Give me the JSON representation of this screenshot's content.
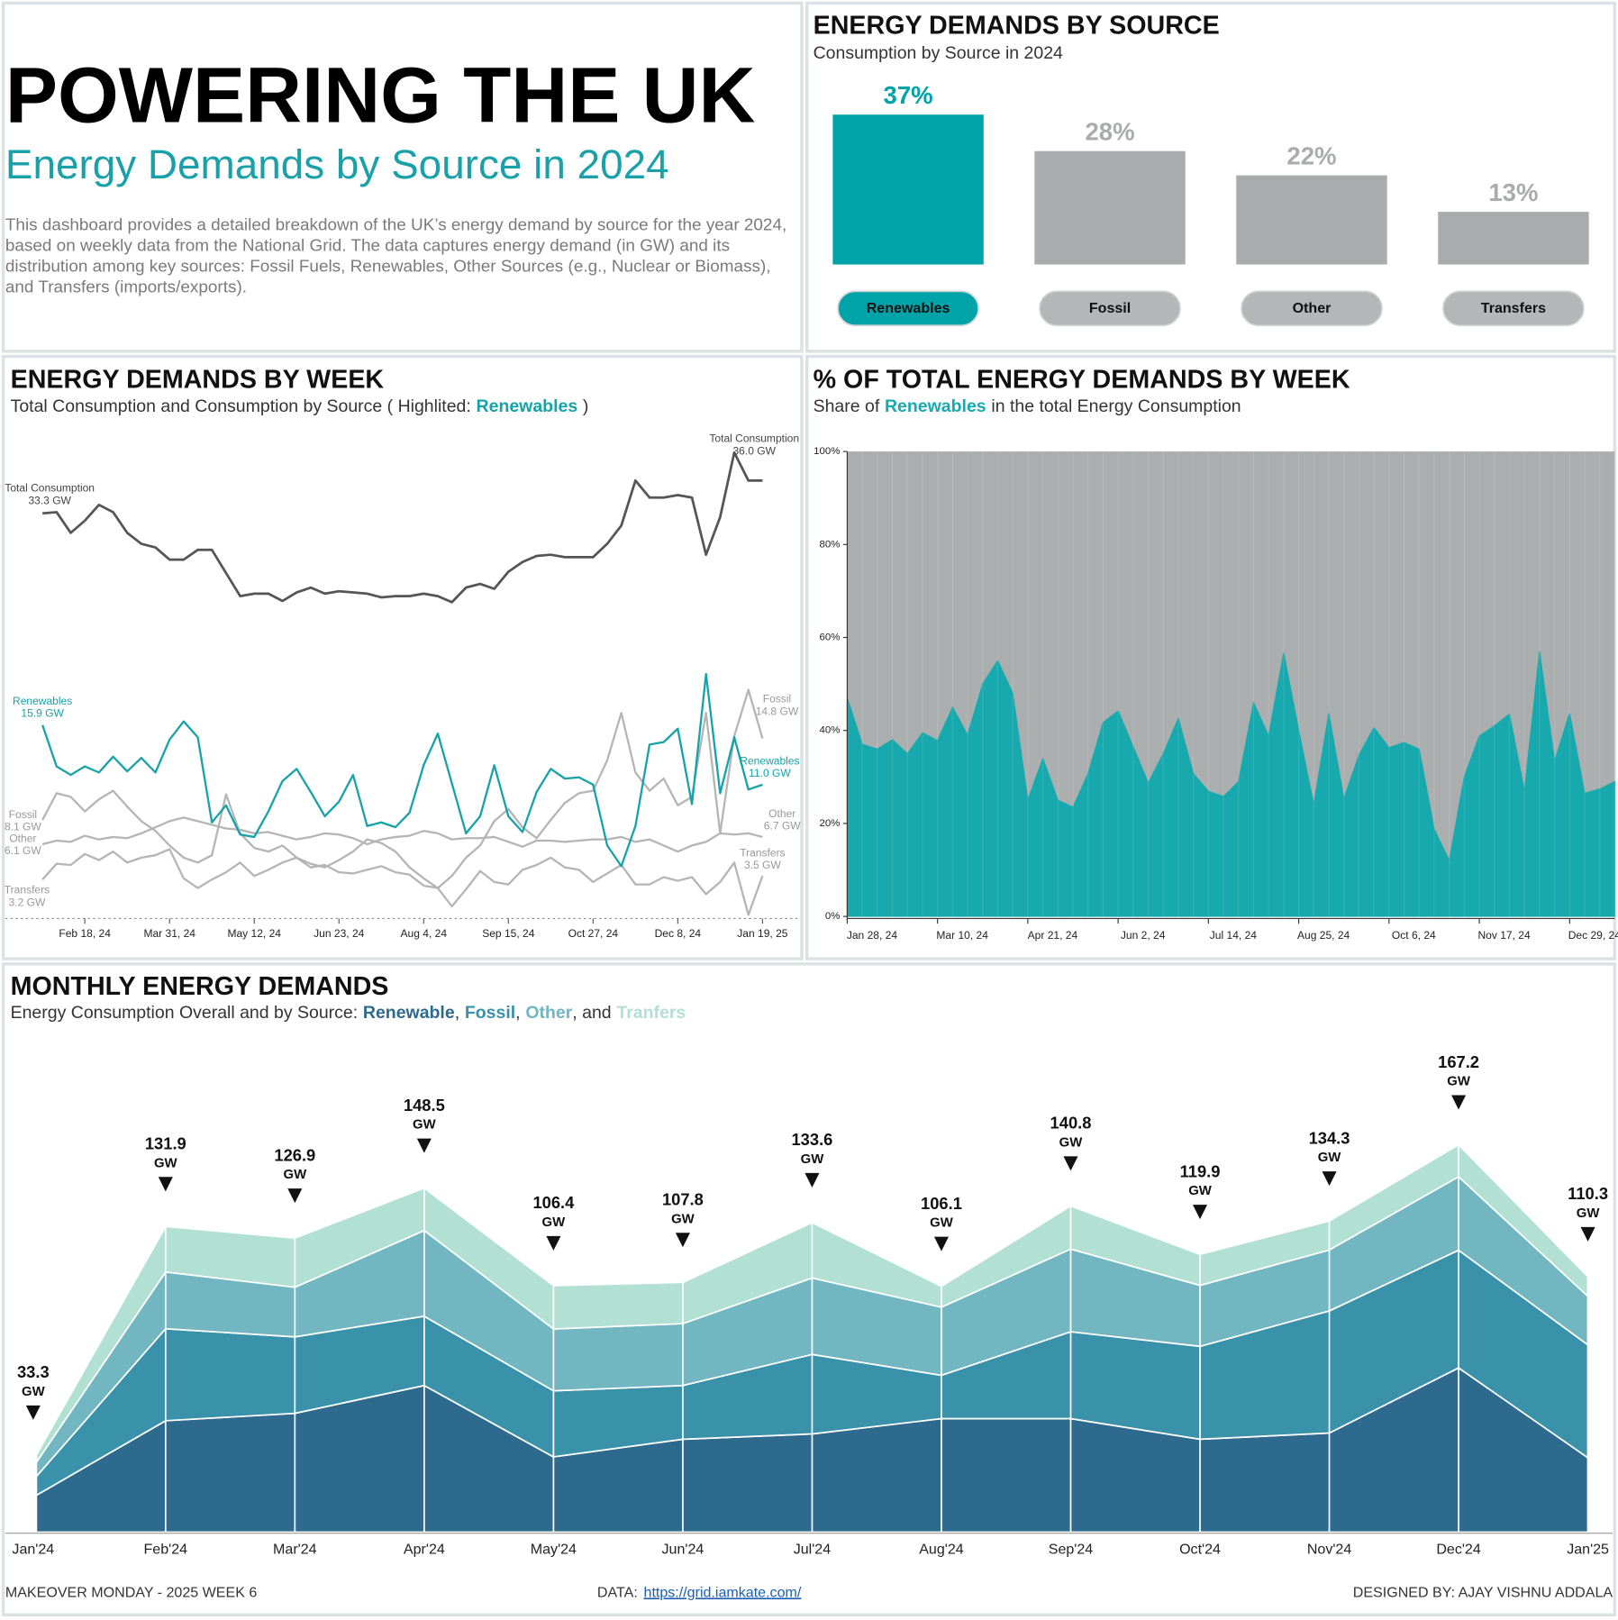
{
  "header": {
    "title": "POWERING THE UK",
    "subtitle": "Energy Demands by Source in 2024",
    "description": "This dashboard provides a detailed breakdown of the UK’s energy demand by source for the year 2024, based on weekly data from the National Grid. The data captures energy demand (in GW) and its distribution among key sources: Fossil Fuels, Renewables, Other Sources (e.g., Nuclear or Biomass), and Transfers (imports/exports)."
  },
  "footer": {
    "left": "MAKEOVER MONDAY - 2025 WEEK 6",
    "data_label": "DATA:",
    "data_url": "https://grid.iamkate.com/",
    "right": "DESIGNED BY: AJAY VISHNU ADDALA"
  },
  "chart_data": [
    {
      "type": "bar",
      "title": "ENERGY DEMANDS BY SOURCE",
      "subtitle": "Consumption by Source in 2024",
      "categories": [
        "Renewables",
        "Fossil",
        "Other",
        "Transfers"
      ],
      "values": [
        37,
        28,
        22,
        13
      ],
      "value_labels": [
        "37%",
        "28%",
        "22%",
        "13%"
      ],
      "colors": [
        "#00a3a8",
        "#a9abac",
        "#a9abac",
        "#a9abac"
      ]
    },
    {
      "type": "line",
      "title": "ENERGY DEMANDS BY WEEK",
      "subtitle": [
        "Total Consumption and Consumption by Source ( Highlited:",
        "Renewables",
        ")"
      ],
      "x": [
        "2024-01-28",
        "2024-02-04",
        "2024-02-11",
        "2024-02-18",
        "2024-02-25",
        "2024-03-03",
        "2024-03-10",
        "2024-03-17",
        "2024-03-24",
        "2024-03-31",
        "2024-04-07",
        "2024-04-14",
        "2024-04-21",
        "2024-04-28",
        "2024-05-05",
        "2024-05-12",
        "2024-05-19",
        "2024-05-26",
        "2024-06-02",
        "2024-06-09",
        "2024-06-16",
        "2024-06-23",
        "2024-06-30",
        "2024-07-07",
        "2024-07-14",
        "2024-07-21",
        "2024-07-28",
        "2024-08-04",
        "2024-08-11",
        "2024-08-18",
        "2024-08-25",
        "2024-09-01",
        "2024-09-08",
        "2024-09-15",
        "2024-09-22",
        "2024-09-29",
        "2024-10-06",
        "2024-10-13",
        "2024-10-20",
        "2024-10-27",
        "2024-11-03",
        "2024-11-10",
        "2024-11-17",
        "2024-11-24",
        "2024-12-01",
        "2024-12-08",
        "2024-12-15",
        "2024-12-22",
        "2024-12-29",
        "2025-01-05",
        "2025-01-12",
        "2025-01-19"
      ],
      "xlim": [
        "2024-01-28",
        "2025-01-19"
      ],
      "ylim": [
        0,
        40
      ],
      "xticks": [
        {
          "value": "2024-02-18",
          "label": "Feb 18, 24"
        },
        {
          "value": "2024-03-31",
          "label": "Mar 31, 24"
        },
        {
          "value": "2024-05-12",
          "label": "May 12, 24"
        },
        {
          "value": "2024-06-23",
          "label": "Jun 23, 24"
        },
        {
          "value": "2024-08-04",
          "label": "Aug 4, 24"
        },
        {
          "value": "2024-09-15",
          "label": "Sep 15, 24"
        },
        {
          "value": "2024-10-27",
          "label": "Oct 27, 24"
        },
        {
          "value": "2024-12-08",
          "label": "Dec 8, 24"
        },
        {
          "value": "2025-01-19",
          "label": "Jan 19, 25"
        }
      ],
      "series": [
        {
          "name": "Total Consumption",
          "color": "#555555",
          "values": [
            33.3,
            33.4,
            31.7,
            32.7,
            34.0,
            33.4,
            31.7,
            30.8,
            30.5,
            29.5,
            29.5,
            30.3,
            30.3,
            28.4,
            26.5,
            26.7,
            26.7,
            26.1,
            26.8,
            27.2,
            26.7,
            26.9,
            26.8,
            26.7,
            26.4,
            26.5,
            26.5,
            26.7,
            26.5,
            26.0,
            27.2,
            27.5,
            27.1,
            28.5,
            29.3,
            29.8,
            29.9,
            29.7,
            29.7,
            29.7,
            30.8,
            32.3,
            36.0,
            34.6,
            34.6,
            34.8,
            34.6,
            29.9,
            33.0,
            38.3,
            36.0,
            36.0
          ],
          "value_labels": [
            "33.3 GW",
            null,
            null,
            null,
            null,
            null,
            null,
            null,
            null,
            null,
            null,
            null,
            null,
            null,
            null,
            null,
            null,
            null,
            null,
            null,
            null,
            null,
            null,
            null,
            null,
            null,
            null,
            null,
            null,
            null,
            null,
            null,
            null,
            null,
            null,
            null,
            null,
            null,
            null,
            null,
            null,
            null,
            null,
            null,
            null,
            null,
            null,
            null,
            null,
            null,
            null,
            "36.0 GW"
          ]
        },
        {
          "name": "Renewables",
          "color": "#16a2a8",
          "values": [
            15.9,
            12.5,
            11.8,
            12.5,
            12.0,
            13.3,
            12.1,
            13.2,
            12.0,
            14.7,
            16.2,
            14.9,
            7.9,
            9.3,
            6.9,
            6.7,
            8.8,
            11.3,
            12.3,
            10.4,
            8.4,
            9.6,
            11.8,
            7.6,
            7.9,
            7.5,
            8.7,
            12.6,
            15.2,
            11.1,
            7.0,
            8.4,
            12.6,
            8.4,
            7.1,
            10.4,
            12.3,
            11.5,
            11.6,
            11.0,
            6.0,
            4.3,
            7.6,
            14.3,
            14.5,
            15.6,
            9.4,
            20.1,
            10.3,
            14.9,
            10.6,
            11.0
          ],
          "value_labels": [
            "15.9 GW",
            null,
            null,
            null,
            null,
            null,
            null,
            null,
            null,
            null,
            null,
            null,
            null,
            null,
            null,
            null,
            null,
            null,
            null,
            null,
            null,
            null,
            null,
            null,
            null,
            null,
            null,
            null,
            null,
            null,
            null,
            null,
            null,
            null,
            null,
            null,
            null,
            null,
            null,
            null,
            null,
            null,
            null,
            null,
            null,
            null,
            null,
            null,
            null,
            null,
            null,
            "11.0 GW"
          ]
        },
        {
          "name": "Fossil",
          "color": "#b5b5b5",
          "values": [
            8.1,
            10.3,
            10.0,
            8.8,
            9.8,
            10.5,
            9.2,
            8.0,
            7.2,
            6.0,
            5.0,
            4.6,
            5.2,
            10.2,
            7.0,
            5.8,
            5.5,
            6.0,
            5.0,
            4.5,
            4.2,
            4.8,
            5.5,
            6.5,
            6.2,
            5.5,
            4.2,
            3.3,
            2.5,
            3.5,
            5.0,
            6.0,
            8.0,
            9.0,
            7.5,
            6.6,
            8.1,
            9.5,
            10.3,
            10.5,
            13.0,
            16.9,
            12.0,
            10.5,
            11.5,
            9.3,
            10.0,
            16.9,
            7.0,
            15.0,
            18.8,
            14.8
          ],
          "value_labels": [
            "8.1 GW",
            null,
            null,
            null,
            null,
            null,
            null,
            null,
            null,
            null,
            null,
            null,
            null,
            null,
            null,
            null,
            null,
            null,
            null,
            null,
            null,
            null,
            null,
            null,
            null,
            null,
            null,
            null,
            null,
            null,
            null,
            null,
            null,
            null,
            null,
            null,
            null,
            null,
            null,
            null,
            null,
            null,
            null,
            null,
            null,
            null,
            null,
            null,
            null,
            null,
            null,
            "14.8 GW"
          ]
        },
        {
          "name": "Other",
          "color": "#b5b5b5",
          "values": [
            6.1,
            6.4,
            6.3,
            6.8,
            6.5,
            6.7,
            6.6,
            7.0,
            7.5,
            8.0,
            8.3,
            8.0,
            7.7,
            7.4,
            7.3,
            7.0,
            7.1,
            6.8,
            6.5,
            6.7,
            7.0,
            6.9,
            6.6,
            6.1,
            6.5,
            6.7,
            6.8,
            7.2,
            7.0,
            6.5,
            6.6,
            6.6,
            6.7,
            6.3,
            5.9,
            6.4,
            6.4,
            6.3,
            6.4,
            6.5,
            6.5,
            6.7,
            6.3,
            6.5,
            6.0,
            5.5,
            6.0,
            6.3,
            7.0,
            6.9,
            7.0,
            6.7
          ],
          "value_labels": [
            "6.1 GW",
            null,
            null,
            null,
            null,
            null,
            null,
            null,
            null,
            null,
            null,
            null,
            null,
            null,
            null,
            null,
            null,
            null,
            null,
            null,
            null,
            null,
            null,
            null,
            null,
            null,
            null,
            null,
            null,
            null,
            null,
            null,
            null,
            null,
            null,
            null,
            null,
            null,
            null,
            null,
            null,
            null,
            null,
            null,
            null,
            null,
            null,
            null,
            null,
            null,
            null,
            "6.7 GW"
          ]
        },
        {
          "name": "Transfers",
          "color": "#b5b5b5",
          "values": [
            3.2,
            4.5,
            4.4,
            5.3,
            4.8,
            5.5,
            4.6,
            5.0,
            5.2,
            5.7,
            3.3,
            2.5,
            3.2,
            3.8,
            4.6,
            3.5,
            4.0,
            4.6,
            5.0,
            4.2,
            4.4,
            3.8,
            3.7,
            4.0,
            4.3,
            3.8,
            3.6,
            2.7,
            2.5,
            1.0,
            2.4,
            3.9,
            3.0,
            2.8,
            4.0,
            4.4,
            5.0,
            4.2,
            4.0,
            3.0,
            3.7,
            4.4,
            2.8,
            2.8,
            3.4,
            3.1,
            3.4,
            2.0,
            3.0,
            4.6,
            0.3,
            3.5
          ],
          "value_labels": [
            "3.2 GW",
            null,
            null,
            null,
            null,
            null,
            null,
            null,
            null,
            null,
            null,
            null,
            null,
            null,
            null,
            null,
            null,
            null,
            null,
            null,
            null,
            null,
            null,
            null,
            null,
            null,
            null,
            null,
            null,
            null,
            null,
            null,
            null,
            null,
            null,
            null,
            null,
            null,
            null,
            null,
            null,
            null,
            null,
            null,
            null,
            null,
            null,
            null,
            null,
            null,
            null,
            "3.5 GW"
          ]
        }
      ]
    },
    {
      "type": "area",
      "title": "% OF TOTAL ENERGY DEMANDS BY WEEK",
      "subtitle": [
        "Share of",
        "Renewables",
        "in the total Energy Consumption"
      ],
      "x": [
        "2024-01-28",
        "2024-02-04",
        "2024-02-11",
        "2024-02-18",
        "2024-02-25",
        "2024-03-03",
        "2024-03-10",
        "2024-03-17",
        "2024-03-24",
        "2024-03-31",
        "2024-04-07",
        "2024-04-14",
        "2024-04-21",
        "2024-04-28",
        "2024-05-05",
        "2024-05-12",
        "2024-05-19",
        "2024-05-26",
        "2024-06-02",
        "2024-06-09",
        "2024-06-16",
        "2024-06-23",
        "2024-06-30",
        "2024-07-07",
        "2024-07-14",
        "2024-07-21",
        "2024-07-28",
        "2024-08-04",
        "2024-08-11",
        "2024-08-18",
        "2024-08-25",
        "2024-09-01",
        "2024-09-08",
        "2024-09-15",
        "2024-09-22",
        "2024-09-29",
        "2024-10-06",
        "2024-10-13",
        "2024-10-20",
        "2024-10-27",
        "2024-11-03",
        "2024-11-10",
        "2024-11-17",
        "2024-11-24",
        "2024-12-01",
        "2024-12-08",
        "2024-12-15",
        "2024-12-22",
        "2024-12-29",
        "2025-01-05",
        "2025-01-12",
        "2025-01-19"
      ],
      "xlim": [
        "2024-01-28",
        "2025-01-19"
      ],
      "ylim": [
        0,
        100
      ],
      "xticks": [
        {
          "value": "2024-01-28",
          "label": "Jan 28, 24"
        },
        {
          "value": "2024-03-10",
          "label": "Mar 10, 24"
        },
        {
          "value": "2024-04-21",
          "label": "Apr 21, 24"
        },
        {
          "value": "2024-06-02",
          "label": "Jun 2, 24"
        },
        {
          "value": "2024-07-14",
          "label": "Jul 14, 24"
        },
        {
          "value": "2024-08-25",
          "label": "Aug 25, 24"
        },
        {
          "value": "2024-10-06",
          "label": "Oct 6, 24"
        },
        {
          "value": "2024-11-17",
          "label": "Nov 17, 24"
        },
        {
          "value": "2024-12-29",
          "label": "Dec 29, 24"
        }
      ],
      "yticks": [
        {
          "value": 0,
          "label": "0%"
        },
        {
          "value": 20,
          "label": "20%"
        },
        {
          "value": 40,
          "label": "40%"
        },
        {
          "value": 60,
          "label": "60%"
        },
        {
          "value": 80,
          "label": "80%"
        },
        {
          "value": 100,
          "label": "100%"
        }
      ],
      "series": [
        {
          "name": "Renewables",
          "color": "#17a9ae",
          "values": [
            47,
            37,
            36,
            38,
            35,
            39.5,
            37.8,
            45,
            39,
            50,
            55,
            48,
            25,
            34,
            25,
            23.5,
            30.7,
            41.7,
            44.2,
            36.5,
            28.7,
            35,
            42.6,
            30.7,
            26.9,
            25.8,
            29,
            46,
            38.8,
            56.7,
            40,
            24,
            43.7,
            25.3,
            34.7,
            40.6,
            36.3,
            37.4,
            36,
            18.8,
            12,
            30,
            38.8,
            41,
            43.5,
            27,
            57,
            33.4,
            43.7,
            26.5,
            27.4,
            29
          ]
        }
      ]
    },
    {
      "type": "stacked_area",
      "title": "MONTHLY ENERGY DEMANDS",
      "subtitle": "Energy Consumption Overall and by Source:",
      "subtitle_joins": [
        ",",
        ",",
        ", and"
      ],
      "categories": [
        "Jan'24",
        "Feb'24",
        "Mar'24",
        "Apr'24",
        "May'24",
        "Jun'24",
        "Jul'24",
        "Aug'24",
        "Sep'24",
        "Oct'24",
        "Nov'24",
        "Dec'24",
        "Jan'25"
      ],
      "series": [
        {
          "name": "Renewable",
          "color": "#2e6a8e",
          "values": [
            15.9,
            48.1,
            51.3,
            63.3,
            32.5,
            40.1,
            42.4,
            49.0,
            49.0,
            40.1,
            42.8,
            70.9,
            32.1
          ]
        },
        {
          "name": "Fossil",
          "color": "#3a92aa",
          "values": [
            8.1,
            39.7,
            33.0,
            29.9,
            28.5,
            23.2,
            34.3,
            18.7,
            37.5,
            40.1,
            52.7,
            50.8,
            48.7
          ]
        },
        {
          "name": "Other",
          "color": "#72b6c1",
          "values": [
            6.1,
            24.5,
            21.4,
            37.0,
            26.7,
            26.7,
            33.0,
            29.4,
            35.7,
            26.3,
            26.3,
            31.7,
            21.0
          ]
        },
        {
          "name": "Tranfers",
          "color": "#b2e0d3",
          "values": [
            3.2,
            19.6,
            21.2,
            18.3,
            18.7,
            17.8,
            23.9,
            9.0,
            18.6,
            13.4,
            12.5,
            13.8,
            8.5
          ]
        }
      ],
      "totals": [
        33.3,
        131.9,
        126.9,
        148.5,
        106.4,
        107.8,
        133.6,
        106.1,
        140.8,
        119.9,
        134.3,
        167.2,
        110.3
      ],
      "total_unit": "GW"
    }
  ]
}
